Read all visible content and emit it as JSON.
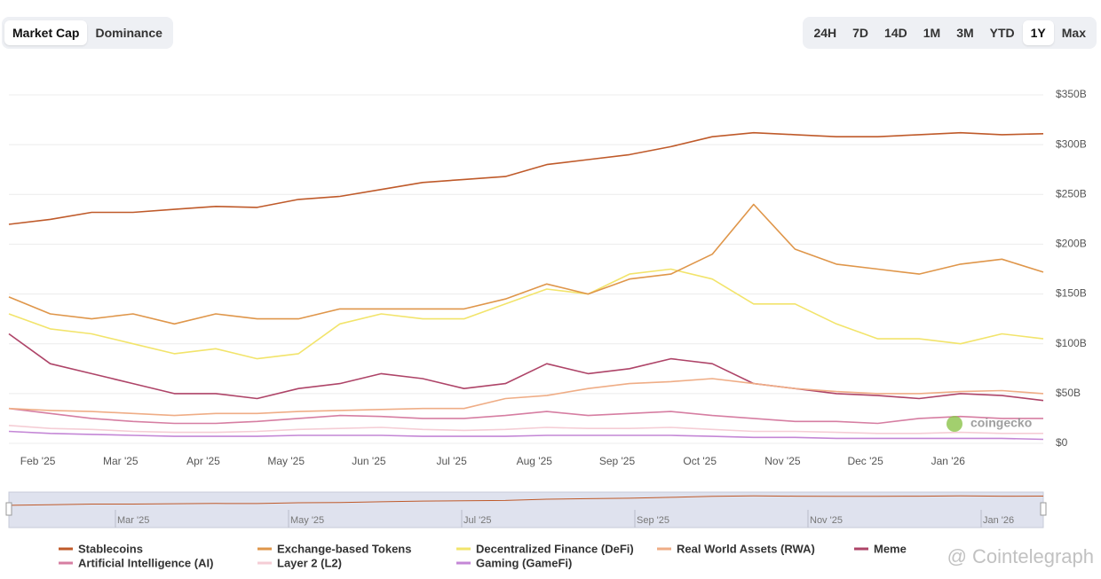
{
  "tabs": {
    "items": [
      "Market Cap",
      "Dominance"
    ],
    "active": 0
  },
  "ranges": {
    "items": [
      "24H",
      "7D",
      "14D",
      "1M",
      "3M",
      "YTD",
      "1Y",
      "Max"
    ],
    "active": 6
  },
  "chart_data": {
    "type": "line",
    "categories": [
      null,
      "Feb '25",
      null,
      "Mar '25",
      null,
      "Apr '25",
      null,
      "May '25",
      null,
      "Jun '25",
      null,
      "Jul '25",
      null,
      "Aug '25",
      null,
      "Sep '25",
      null,
      "Oct '25",
      null,
      "Nov '25",
      null,
      "Dec '25",
      null,
      "Jan '26",
      null,
      null
    ],
    "series": [
      {
        "name": "Stablecoins",
        "color": "#bf5a2a",
        "values": [
          220,
          225,
          232,
          232,
          235,
          238,
          237,
          245,
          248,
          255,
          262,
          265,
          268,
          280,
          285,
          290,
          298,
          308,
          312,
          310,
          308,
          308,
          310,
          312,
          310,
          311
        ]
      },
      {
        "name": "Exchange-based Tokens",
        "color": "#df964a",
        "values": [
          147,
          130,
          125,
          130,
          120,
          130,
          125,
          125,
          135,
          135,
          135,
          135,
          145,
          160,
          150,
          165,
          170,
          190,
          240,
          195,
          180,
          175,
          170,
          180,
          185,
          172
        ]
      },
      {
        "name": "Decentralized Finance (DeFi)",
        "color": "#f2e46b",
        "values": [
          130,
          115,
          110,
          100,
          90,
          95,
          85,
          90,
          120,
          130,
          125,
          125,
          140,
          155,
          150,
          170,
          175,
          165,
          140,
          140,
          120,
          105,
          105,
          100,
          110,
          105
        ]
      },
      {
        "name": "Real World Assets (RWA)",
        "color": "#efad86",
        "values": [
          35,
          33,
          32,
          30,
          28,
          30,
          30,
          32,
          33,
          34,
          35,
          35,
          45,
          48,
          55,
          60,
          62,
          65,
          60,
          55,
          52,
          50,
          50,
          52,
          53,
          50
        ]
      },
      {
        "name": "Meme",
        "color": "#ae4468",
        "values": [
          110,
          80,
          70,
          60,
          50,
          50,
          45,
          55,
          60,
          70,
          65,
          55,
          60,
          80,
          70,
          75,
          85,
          80,
          60,
          55,
          50,
          48,
          45,
          50,
          48,
          43
        ]
      },
      {
        "name": "Artificial Intelligence (AI)",
        "color": "#d67ea2",
        "values": [
          35,
          30,
          25,
          22,
          20,
          20,
          22,
          25,
          28,
          27,
          25,
          25,
          28,
          32,
          28,
          30,
          32,
          28,
          25,
          22,
          22,
          20,
          25,
          27,
          25,
          25
        ]
      },
      {
        "name": "Layer 2 (L2)",
        "color": "#f5cdd5",
        "values": [
          18,
          15,
          14,
          12,
          11,
          11,
          12,
          14,
          15,
          16,
          14,
          13,
          14,
          16,
          15,
          15,
          16,
          14,
          12,
          12,
          11,
          10,
          10,
          11,
          10,
          10
        ]
      },
      {
        "name": "Gaming (GameFi)",
        "color": "#c487d6",
        "values": [
          12,
          10,
          9,
          8,
          7,
          7,
          7,
          8,
          8,
          8,
          7,
          7,
          7,
          8,
          8,
          8,
          8,
          7,
          6,
          6,
          5,
          5,
          5,
          5,
          5,
          4
        ]
      }
    ],
    "ylim": [
      0,
      350
    ],
    "yticks": [
      {
        "value": 0,
        "label": "$0"
      },
      {
        "value": 50,
        "label": "$50B"
      },
      {
        "value": 100,
        "label": "$100B"
      },
      {
        "value": 150,
        "label": "$150B"
      },
      {
        "value": 200,
        "label": "$200B"
      },
      {
        "value": 250,
        "label": "$250B"
      },
      {
        "value": 300,
        "label": "$300B"
      },
      {
        "value": 350,
        "label": "$350B"
      }
    ],
    "grid": true
  },
  "navigator": {
    "labels": [
      "Mar '25",
      "May '25",
      "Jul '25",
      "Sep '25",
      "Nov '25",
      "Jan '26"
    ]
  },
  "watermarks": [
    "coingecko",
    "@ Cointelegraph"
  ]
}
